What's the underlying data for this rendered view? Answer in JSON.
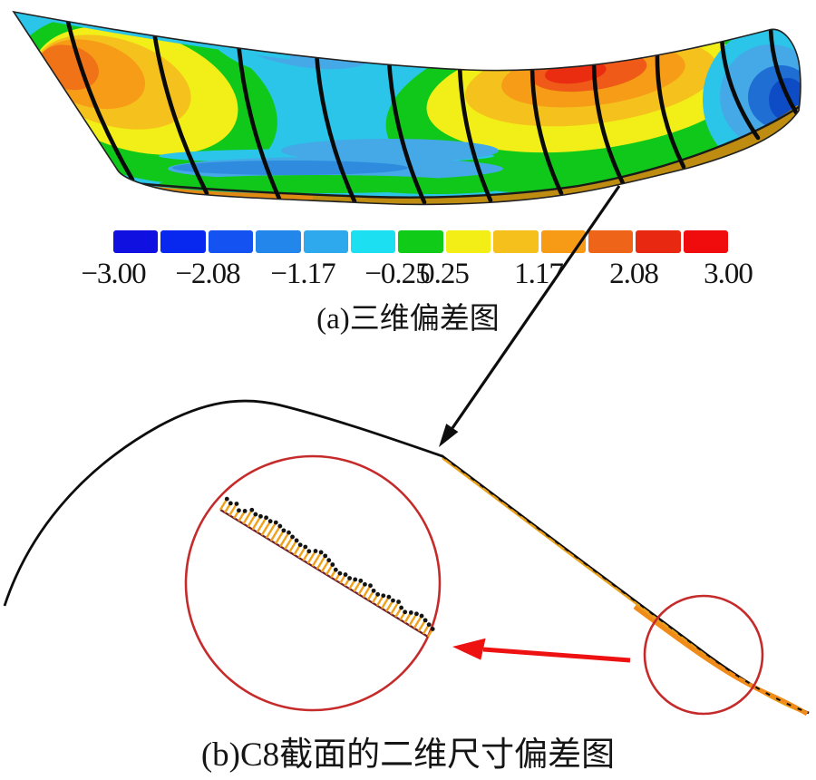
{
  "panel_a": {
    "caption": "(a)三维偏差图",
    "colorbar": {
      "tick_labels": [
        "−3.00",
        "−2.08",
        "−1.17",
        "−0.25",
        "0.25",
        "1.17",
        "2.08",
        "3.00"
      ],
      "min": -3.0,
      "max": 3.0,
      "segment_colors": [
        "#1010e0",
        "#0828f0",
        "#1453f2",
        "#2286ea",
        "#2fa9ee",
        "#1ce0f2",
        "#10cc18",
        "#f2ee16",
        "#f5c01c",
        "#f79a16",
        "#ee6418",
        "#e92812",
        "#f00c0c"
      ]
    }
  },
  "panel_b": {
    "caption": "(b)C8截面的二维尺寸偏差图",
    "whisker_heights": [
      14,
      12,
      15,
      10,
      13,
      18,
      16,
      17,
      19,
      18,
      20,
      19,
      17,
      18,
      16,
      15,
      13,
      14,
      12,
      16,
      18,
      17,
      15,
      13,
      10,
      9,
      11,
      10,
      12,
      14,
      13,
      15,
      12,
      11,
      13,
      15,
      14,
      16,
      12,
      10,
      13,
      15,
      16,
      14,
      12,
      10
    ]
  },
  "accents": {
    "annotation_black": "#0d0d0d",
    "annotation_red": "#ee1111",
    "circle_red": "#c62b2b",
    "whisker_orange": "#efa11b",
    "whisker_dot": "#141414",
    "profile_gold": "#e8a11a"
  }
}
